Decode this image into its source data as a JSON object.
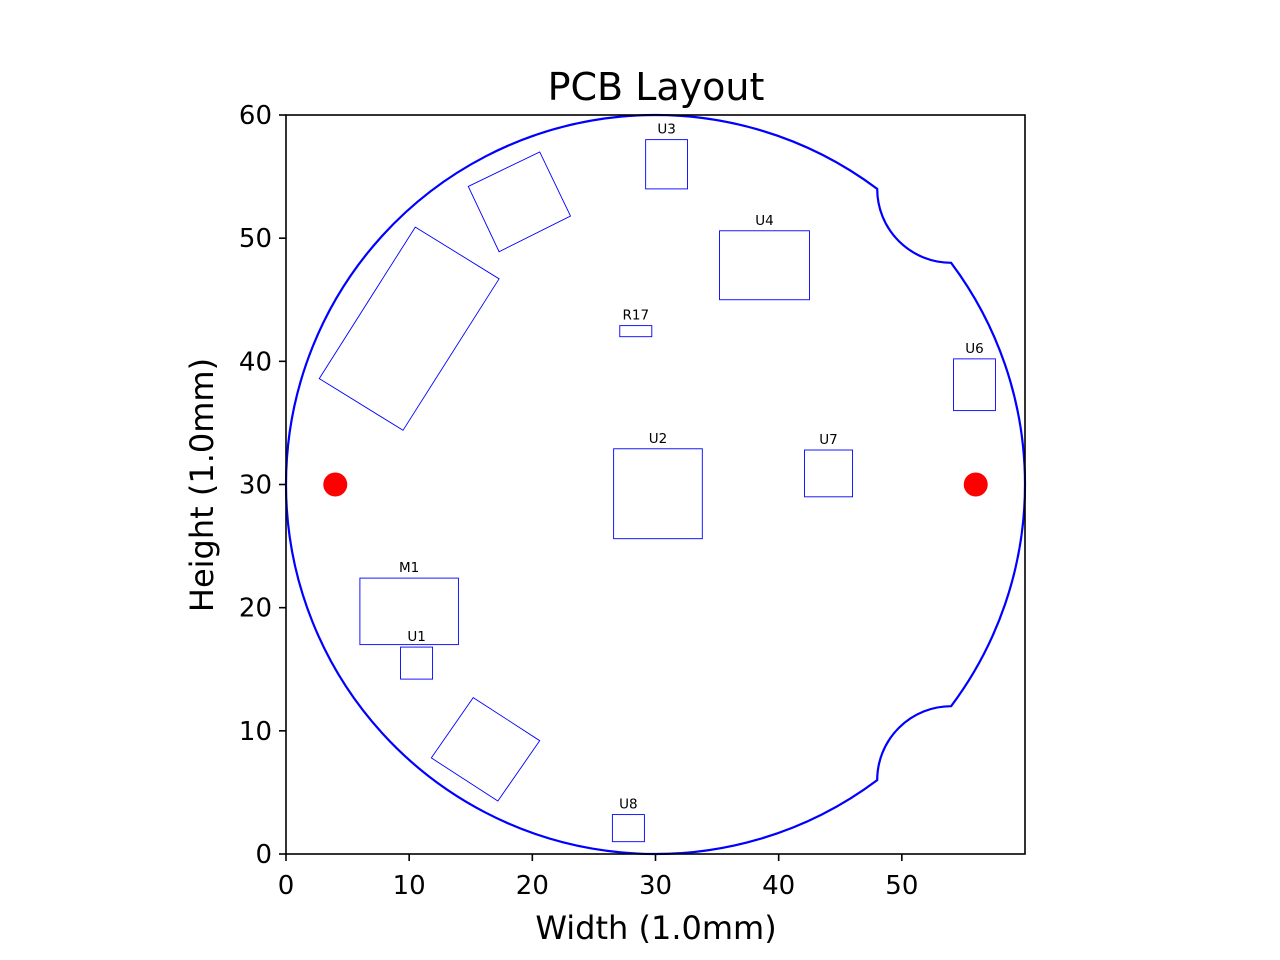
{
  "chart_data": {
    "type": "scatter",
    "title": "PCB Layout",
    "xlabel": "Width (1.0mm)",
    "ylabel": "Height (1.0mm)",
    "xlim": [
      0,
      60
    ],
    "ylim": [
      0,
      60
    ],
    "xticks": [
      0,
      10,
      20,
      30,
      40,
      50
    ],
    "yticks": [
      0,
      10,
      20,
      30,
      40,
      50,
      60
    ],
    "grid": false,
    "colors": {
      "outline": "#0000ff",
      "components": "#0000ff",
      "holes": "#ff0000"
    },
    "board_outline": {
      "circle_center": [
        30,
        30
      ],
      "circle_radius": 30,
      "notches": [
        {
          "center": [
            54,
            54
          ],
          "radius": 6,
          "from": [
            48,
            54
          ],
          "to": [
            54,
            48
          ]
        },
        {
          "center": [
            54,
            6
          ],
          "radius": 6,
          "from": [
            54,
            12
          ],
          "to": [
            48,
            6
          ]
        }
      ]
    },
    "mounting_holes": [
      {
        "x": 4,
        "y": 30
      },
      {
        "x": 56,
        "y": 30
      }
    ],
    "components": [
      {
        "label": "U3",
        "x": 29.2,
        "y": 54,
        "w": 3.4,
        "h": 4
      },
      {
        "label": "U4",
        "x": 35.2,
        "y": 45,
        "w": 7.3,
        "h": 5.6
      },
      {
        "label": "R17",
        "x": 27.1,
        "y": 42,
        "w": 2.6,
        "h": 0.9
      },
      {
        "label": "U6",
        "x": 54.2,
        "y": 36,
        "w": 3.4,
        "h": 4.2
      },
      {
        "label": "U2",
        "x": 26.6,
        "y": 25.6,
        "w": 7.2,
        "h": 7.3
      },
      {
        "label": "U7",
        "x": 42.1,
        "y": 29,
        "w": 3.9,
        "h": 3.8
      },
      {
        "label": "M1",
        "x": 6,
        "y": 17,
        "w": 8,
        "h": 5.4
      },
      {
        "label": "U1",
        "x": 9.3,
        "y": 14.2,
        "w": 2.6,
        "h": 2.6
      },
      {
        "label": "U8",
        "x": 26.5,
        "y": 1,
        "w": 2.6,
        "h": 2.2
      },
      {
        "label": "",
        "corners": [
          [
            2.7,
            38.6
          ],
          [
            9.5,
            34.4
          ],
          [
            17.3,
            46.7
          ],
          [
            10.5,
            50.9
          ]
        ]
      },
      {
        "label": "",
        "corners": [
          [
            14.8,
            54.2
          ],
          [
            20.6,
            57
          ],
          [
            23.1,
            51.8
          ],
          [
            17.3,
            48.9
          ]
        ]
      },
      {
        "label": "",
        "corners": [
          [
            11.8,
            7.8
          ],
          [
            17.2,
            4.3
          ],
          [
            20.6,
            9.2
          ],
          [
            15.2,
            12.7
          ]
        ]
      }
    ]
  }
}
